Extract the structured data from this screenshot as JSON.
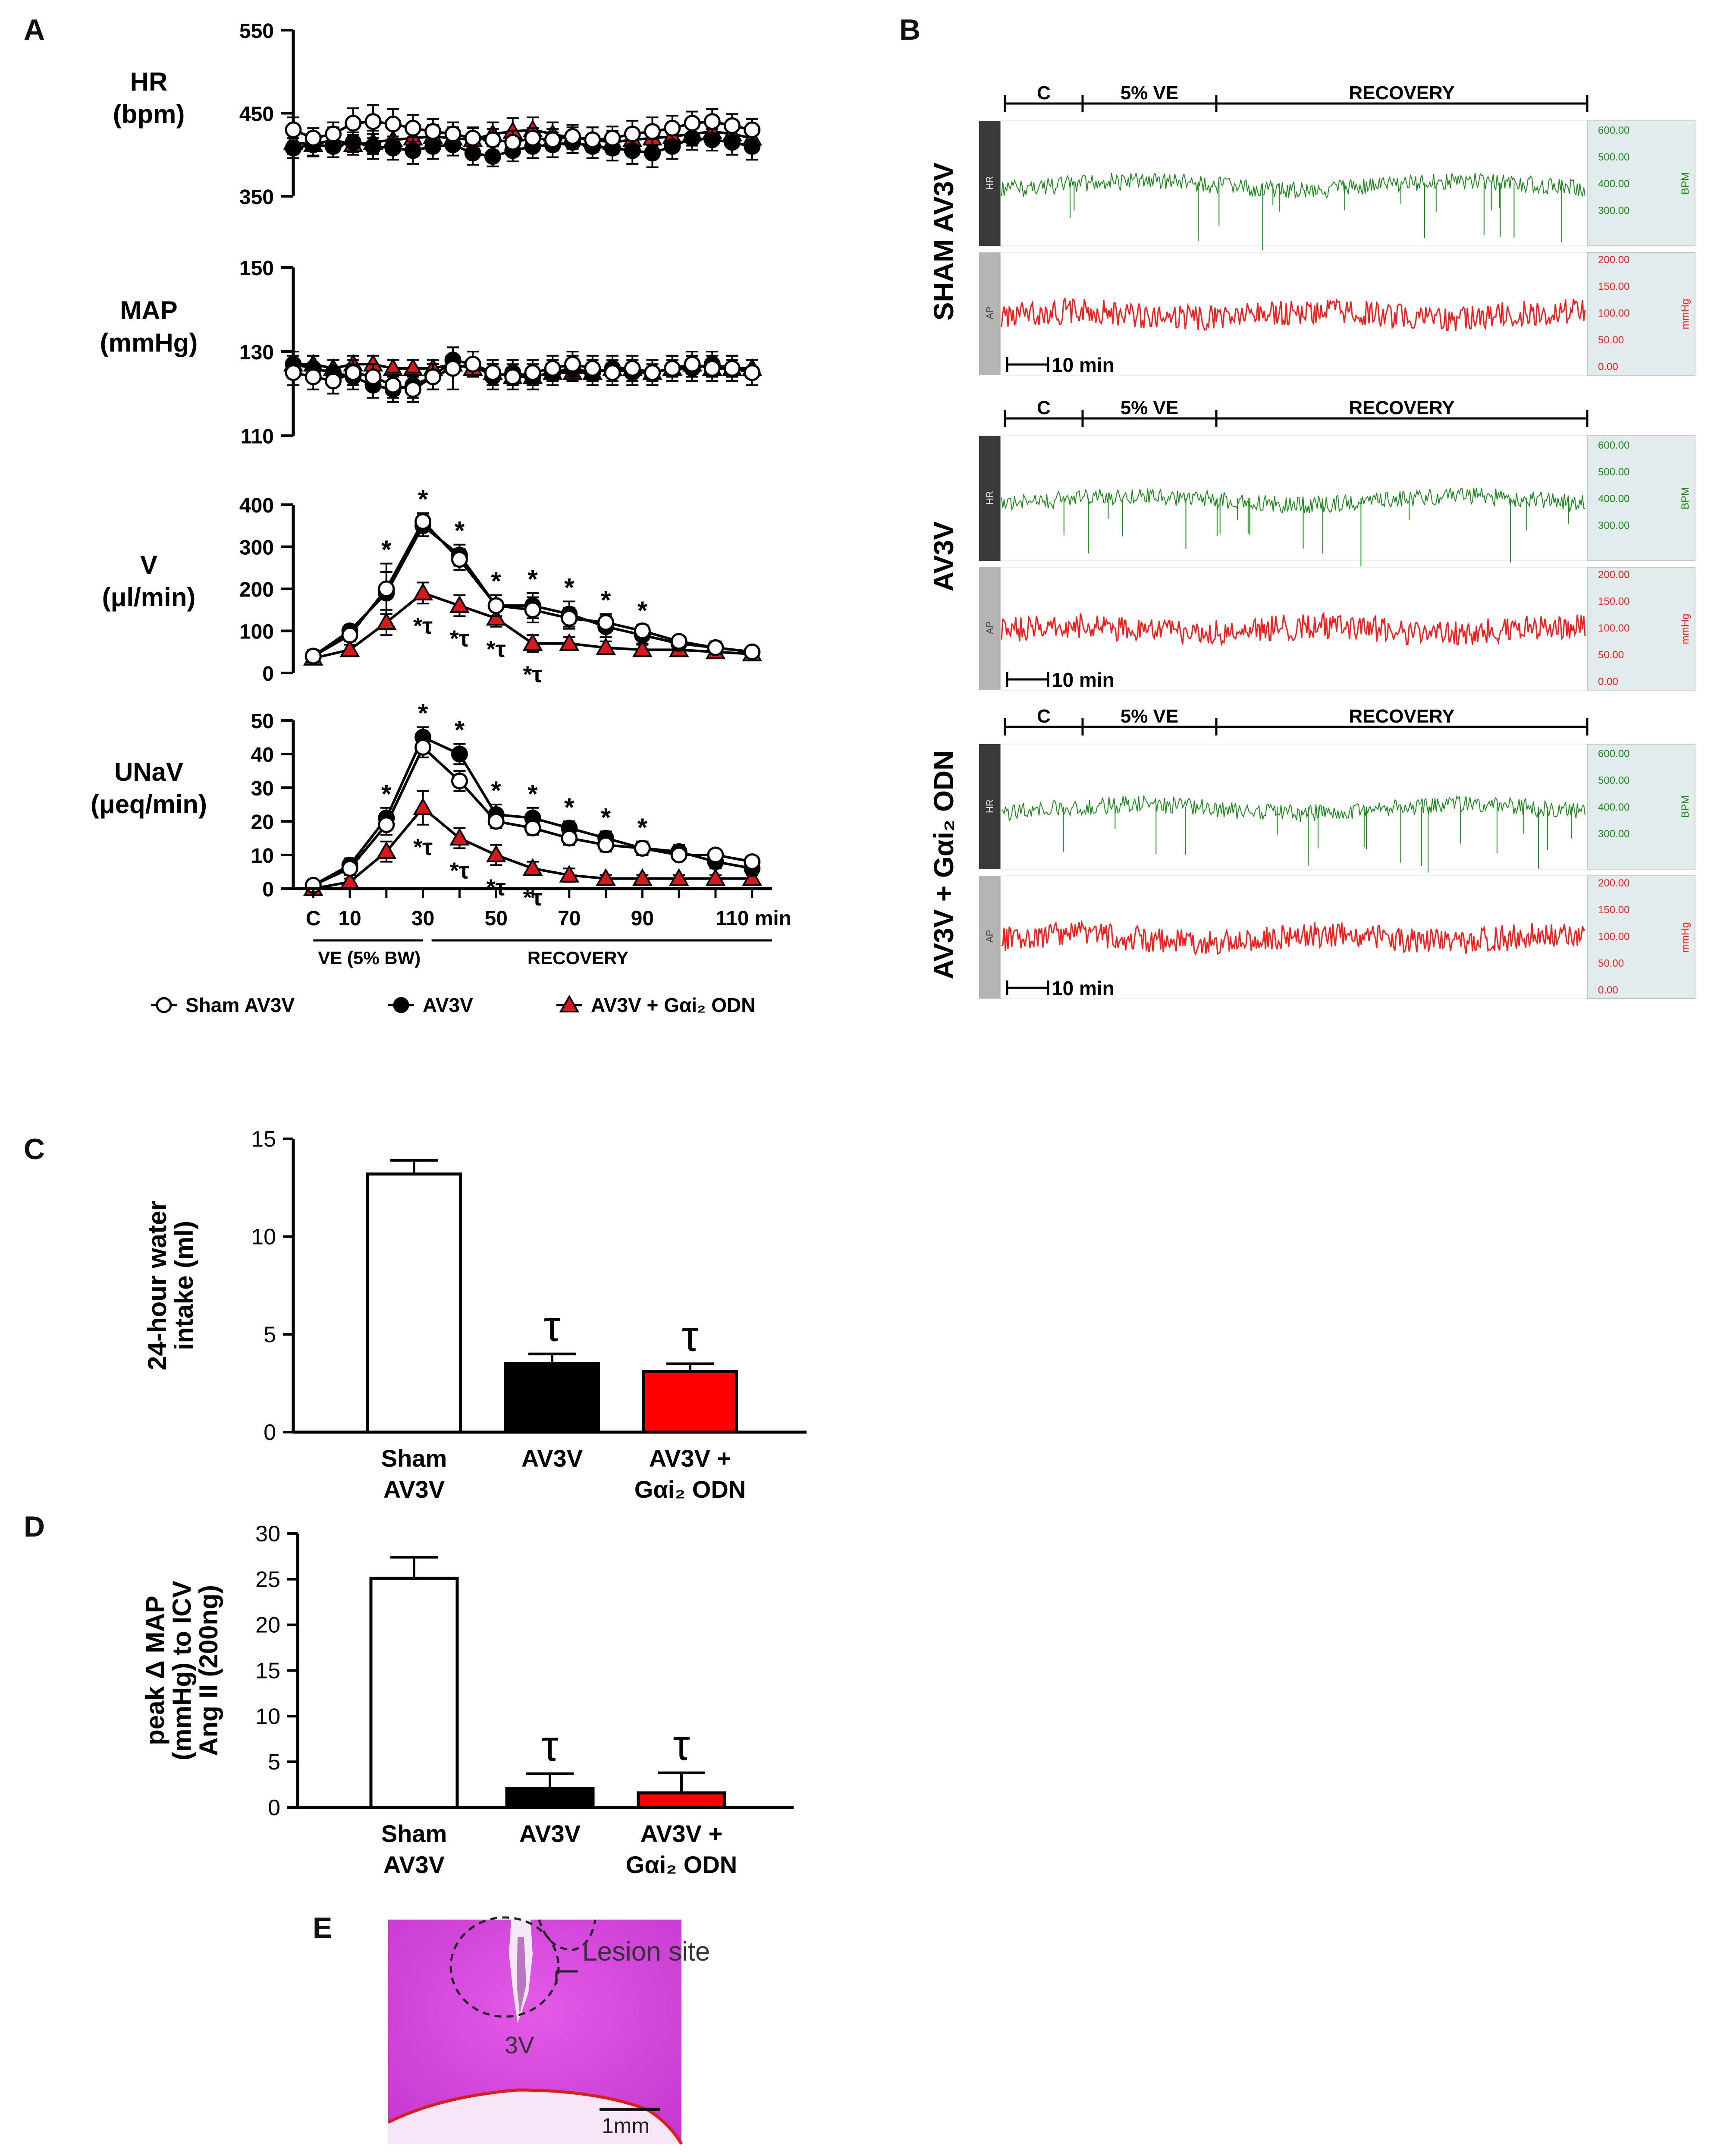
{
  "panels": {
    "A": "A",
    "B": "B",
    "C": "C",
    "D": "D",
    "E": "E"
  },
  "panelA": {
    "x_ticks": [
      "C",
      "10",
      "30",
      "50",
      "70",
      "90",
      "110 min"
    ],
    "x_tick_positions": [
      0,
      10,
      30,
      50,
      70,
      90,
      110
    ],
    "bar_ve": "VE (5% BW)",
    "bar_recovery": "RECOVERY",
    "legend": [
      "Sham AV3V",
      "AV3V",
      "AV3V + Gαi₂ ODN"
    ],
    "colors": {
      "sham": "#ffffff",
      "av3v": "#000000",
      "odn": "#d7191c"
    }
  },
  "chart_data": [
    {
      "type": "line",
      "panel": "A",
      "title": "HR",
      "ylabel": "HR (bpm)",
      "ylim": [
        350,
        550
      ],
      "yticks": [
        350,
        450,
        550
      ],
      "x": [
        0,
        5,
        10,
        15,
        20,
        25,
        30,
        35,
        40,
        45,
        50,
        55,
        60,
        65,
        70,
        75,
        80,
        85,
        90,
        95,
        100,
        105,
        110,
        115
      ],
      "series": [
        {
          "name": "Sham AV3V",
          "values": [
            430,
            420,
            425,
            438,
            440,
            437,
            432,
            428,
            425,
            420,
            418,
            415,
            420,
            418,
            422,
            418,
            420,
            425,
            428,
            432,
            438,
            440,
            435,
            430
          ],
          "err": [
            15,
            12,
            14,
            18,
            20,
            18,
            16,
            15,
            14,
            12,
            13,
            14,
            12,
            13,
            14,
            15,
            14,
            16,
            17,
            15,
            14,
            15,
            14,
            13
          ]
        },
        {
          "name": "AV3V",
          "values": [
            408,
            412,
            410,
            415,
            410,
            408,
            405,
            410,
            412,
            402,
            398,
            405,
            410,
            412,
            415,
            410,
            408,
            405,
            402,
            410,
            420,
            418,
            415,
            410
          ],
          "err": [
            12,
            14,
            13,
            12,
            15,
            14,
            16,
            15,
            13,
            14,
            12,
            13,
            14,
            15,
            13,
            14,
            15,
            16,
            17,
            15,
            14,
            13,
            15,
            16
          ]
        },
        {
          "name": "AV3V + Gαi₂ ODN",
          "values": [
            415,
            412,
            418,
            412,
            415,
            418,
            420,
            422,
            420,
            418,
            425,
            428,
            430,
            425,
            420,
            418,
            415,
            418,
            420,
            422,
            425,
            428,
            425,
            420
          ],
          "err": [
            14,
            13,
            15,
            12,
            14,
            13,
            15,
            14,
            13,
            15,
            14,
            16,
            15,
            14,
            13,
            15,
            14,
            13,
            15,
            16,
            14,
            13,
            15,
            14
          ]
        }
      ]
    },
    {
      "type": "line",
      "panel": "A",
      "title": "MAP",
      "ylabel": "MAP (mmHg)",
      "ylim": [
        110,
        150
      ],
      "yticks": [
        110,
        130,
        150
      ],
      "x": [
        0,
        5,
        10,
        15,
        20,
        25,
        30,
        35,
        40,
        45,
        50,
        55,
        60,
        65,
        70,
        75,
        80,
        85,
        90,
        95,
        100,
        105,
        110,
        115
      ],
      "series": [
        {
          "name": "Sham AV3V",
          "values": [
            125,
            124,
            123,
            125,
            124,
            122,
            121,
            124,
            126,
            127,
            125,
            124,
            125,
            126,
            127,
            126,
            125,
            126,
            125,
            126,
            127,
            126,
            126,
            125
          ],
          "err": [
            3,
            3,
            3,
            3,
            3,
            3,
            3,
            3,
            5,
            3,
            3,
            3,
            3,
            3,
            3,
            3,
            3,
            3,
            3,
            3,
            3,
            3,
            3,
            3
          ]
        },
        {
          "name": "AV3V",
          "values": [
            127,
            126,
            125,
            124,
            122,
            121,
            122,
            124,
            128,
            127,
            124,
            125,
            124,
            125,
            126,
            125,
            126,
            125,
            125,
            126,
            126,
            127,
            126,
            125
          ],
          "err": [
            3,
            3,
            3,
            3,
            3,
            3,
            3,
            3,
            3,
            3,
            3,
            3,
            3,
            3,
            3,
            3,
            3,
            3,
            3,
            3,
            3,
            3,
            3,
            3
          ]
        },
        {
          "name": "AV3V + Gαi₂ ODN",
          "values": [
            127,
            127,
            126,
            127,
            127,
            126,
            126,
            126,
            127,
            126,
            125,
            124,
            124,
            125,
            125,
            125,
            126,
            126,
            125,
            126,
            127,
            126,
            126,
            126
          ],
          "err": [
            2,
            2,
            2,
            2,
            2,
            2,
            2,
            2,
            2,
            2,
            2,
            2,
            2,
            2,
            2,
            2,
            2,
            2,
            2,
            2,
            2,
            2,
            2,
            2
          ]
        }
      ]
    },
    {
      "type": "line",
      "panel": "A",
      "title": "V",
      "ylabel": "V (μl/min)",
      "ylim": [
        0,
        400
      ],
      "yticks": [
        0,
        100,
        200,
        300,
        400
      ],
      "x": [
        0,
        10,
        20,
        30,
        40,
        50,
        60,
        70,
        80,
        90,
        100,
        110,
        120
      ],
      "series": [
        {
          "name": "Sham AV3V",
          "values": [
            40,
            90,
            200,
            360,
            270,
            160,
            150,
            130,
            120,
            100,
            75,
            60,
            50
          ],
          "err": [
            15,
            15,
            60,
            20,
            25,
            25,
            30,
            25,
            20,
            15,
            10,
            10,
            10
          ]
        },
        {
          "name": "AV3V",
          "values": [
            40,
            100,
            190,
            350,
            280,
            160,
            160,
            140,
            110,
            90,
            70,
            60,
            50
          ],
          "err": [
            12,
            15,
            50,
            25,
            25,
            25,
            30,
            30,
            25,
            20,
            15,
            15,
            12
          ]
        },
        {
          "name": "AV3V + Gαi₂ ODN",
          "values": [
            35,
            55,
            120,
            190,
            160,
            130,
            70,
            70,
            60,
            55,
            55,
            50,
            45
          ],
          "err": [
            10,
            12,
            30,
            25,
            25,
            20,
            20,
            15,
            15,
            12,
            12,
            10,
            10
          ]
        }
      ],
      "annotations": [
        "*",
        "*",
        "*",
        "*",
        "*",
        "*",
        "*",
        "*",
        "*",
        "*",
        "*",
        "*",
        "*τ",
        "*τ",
        "*τ",
        "*τ",
        "*τ"
      ]
    },
    {
      "type": "line",
      "panel": "A",
      "title": "UNaV",
      "ylabel": "UNaV (μeq/min)",
      "ylim": [
        0,
        50
      ],
      "yticks": [
        0,
        10,
        20,
        30,
        40,
        50
      ],
      "x": [
        0,
        10,
        20,
        30,
        40,
        50,
        60,
        70,
        80,
        90,
        100,
        110,
        120
      ],
      "series": [
        {
          "name": "Sham AV3V",
          "values": [
            1,
            6,
            19,
            42,
            32,
            20,
            18,
            15,
            13,
            12,
            10,
            10,
            8
          ],
          "err": [
            1,
            2,
            3,
            3,
            3,
            2,
            2,
            2,
            2,
            2,
            1,
            1,
            1
          ]
        },
        {
          "name": "AV3V",
          "values": [
            1,
            7,
            21,
            45,
            40,
            22,
            21,
            18,
            15,
            12,
            11,
            8,
            6
          ],
          "err": [
            1,
            2,
            3,
            3,
            3,
            3,
            3,
            2,
            2,
            2,
            2,
            2,
            1
          ]
        },
        {
          "name": "AV3V + Gαi₂ ODN",
          "values": [
            0,
            2,
            11,
            24,
            15,
            10,
            6,
            4,
            3,
            3,
            3,
            3,
            3
          ],
          "err": [
            1,
            1,
            3,
            5,
            3,
            3,
            2,
            2,
            1,
            1,
            1,
            1,
            1
          ]
        }
      ],
      "annotations": [
        "*",
        "*",
        "*",
        "*",
        "*",
        "*",
        "*",
        "*",
        "*",
        "*",
        "*",
        "*",
        "*τ",
        "*τ",
        "*τ",
        "*τ",
        "*τ",
        "τ",
        "τ"
      ]
    },
    {
      "type": "bar",
      "panel": "C",
      "ylabel": "24-hour water intake (ml)",
      "ylim": [
        0,
        15
      ],
      "yticks": [
        0,
        5,
        10,
        15
      ],
      "categories": [
        "Sham AV3V",
        "AV3V",
        "AV3V + Gαi₂ ODN"
      ],
      "values": [
        13.2,
        3.5,
        3.1
      ],
      "err": [
        0.7,
        0.5,
        0.4
      ],
      "colors": [
        "#ffffff",
        "#000000",
        "#ff0000"
      ],
      "annotations": [
        "",
        "τ",
        "τ"
      ]
    },
    {
      "type": "bar",
      "panel": "D",
      "ylabel": "peak Δ MAP (mmHg) to ICV Ang II (200ng)",
      "ylim": [
        0,
        30
      ],
      "yticks": [
        0,
        5,
        10,
        15,
        20,
        25,
        30
      ],
      "categories": [
        "Sham AV3V",
        "AV3V",
        "AV3V + Gαi₂ ODN"
      ],
      "values": [
        25.1,
        2.1,
        1.6
      ],
      "err": [
        2.3,
        1.6,
        2.2
      ],
      "colors": [
        "#ffffff",
        "#000000",
        "#ff0000"
      ],
      "annotations": [
        "",
        "τ",
        "τ"
      ]
    }
  ],
  "panelB": {
    "segments": {
      "c": "C",
      "ve": "5% VE",
      "rec": "RECOVERY"
    },
    "groups": [
      {
        "label": "SHAM AV3V"
      },
      {
        "label": "AV3V"
      },
      {
        "label": "AV3V + Gαi₂ ODN"
      }
    ],
    "hr_channel": "HR",
    "ap_channel": "AP",
    "hr_unit": "BPM",
    "ap_unit": "mmHg",
    "hr_ticks": [
      "600.00",
      "500.00",
      "400.00",
      "300.00"
    ],
    "ap_ticks": [
      "200.00",
      "150.00",
      "100.00",
      "50.00",
      "0.00"
    ],
    "scale": "10 min",
    "hr_color": "#1a8c1a",
    "ap_color": "#ff1a1a"
  },
  "panelE": {
    "third_ventricle": "3V",
    "lesion_label": "Lesion site",
    "scalebar": "1mm"
  }
}
